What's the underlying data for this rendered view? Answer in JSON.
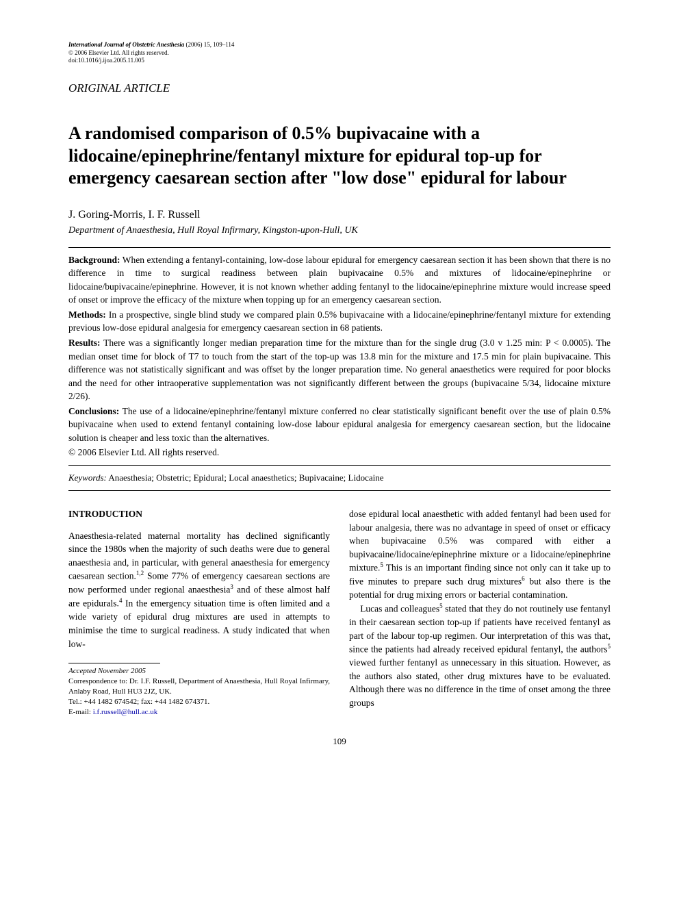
{
  "journal_header": {
    "journal_name": "International Journal of Obstetric Anesthesia",
    "citation_rest": " (2006) 15, 109–114",
    "copyright_line": "© 2006 Elsevier Ltd. All rights reserved.",
    "doi_line": "doi:10.1016/j.ijoa.2005.11.005"
  },
  "article_type": "ORIGINAL ARTICLE",
  "title": "A randomised comparison of 0.5% bupivacaine with a lidocaine/epinephrine/fentanyl mixture for epidural top-up for emergency caesarean section after \"low dose\" epidural for labour",
  "authors": "J. Goring-Morris, I. F. Russell",
  "affiliation": "Department of Anaesthesia, Hull Royal Infirmary, Kingston-upon-Hull, UK",
  "abstract": {
    "background_label": "Background:",
    "background": "When extending a fentanyl-containing, low-dose labour epidural for emergency caesarean section it has been shown that there is no difference in time to surgical readiness between plain bupivacaine 0.5% and mixtures of lidocaine/epinephrine or lidocaine/bupivacaine/epinephrine. However, it is not known whether adding fentanyl to the lidocaine/epinephrine mixture would increase speed of onset or improve the efficacy of the mixture when topping up for an emergency caesarean section.",
    "methods_label": "Methods:",
    "methods": "In a prospective, single blind study we compared plain 0.5% bupivacaine with a lidocaine/epinephrine/fentanyl mixture for extending previous low-dose epidural analgesia for emergency caesarean section in 68 patients.",
    "results_label": "Results:",
    "results": "There was a significantly longer median preparation time for the mixture than for the single drug (3.0 v 1.25 min: P < 0.0005). The median onset time for block of T7 to touch from the start of the top-up was 13.8 min for the mixture and 17.5 min for plain bupivacaine. This difference was not statistically significant and was offset by the longer preparation time. No general anaesthetics were required for poor blocks and the need for other intraoperative supplementation was not significantly different between the groups (bupivacaine 5/34, lidocaine mixture 2/26).",
    "conclusions_label": "Conclusions:",
    "conclusions": "The use of a lidocaine/epinephrine/fentanyl mixture conferred no clear statistically significant benefit over the use of plain 0.5% bupivacaine when used to extend fentanyl containing low-dose labour epidural analgesia for emergency caesarean section, but the lidocaine solution is cheaper and less toxic than the alternatives.",
    "copyright": "© 2006 Elsevier Ltd. All rights reserved."
  },
  "keywords": {
    "label": "Keywords:",
    "text": " Anaesthesia; Obstetric; Epidural; Local anaesthetics; Bupivacaine; Lidocaine"
  },
  "body": {
    "intro_heading": "INTRODUCTION",
    "left_p1_a": "Anaesthesia-related maternal mortality has declined significantly since the 1980s when the majority of such deaths were due to general anaesthesia and, in particular, with general anaesthesia for emergency caesarean section.",
    "left_p1_sup1": "1,2",
    "left_p1_b": " Some 77% of emergency caesarean sections are now performed under regional anaesthesia",
    "left_p1_sup2": "3",
    "left_p1_c": " and of these almost half are epidurals.",
    "left_p1_sup3": "4",
    "left_p1_d": " In the emergency situation time is often limited and a wide variety of epidural drug mixtures are used in attempts to minimise the time to surgical readiness. A study indicated that when low-",
    "right_p1_a": "dose epidural local anaesthetic with added fentanyl had been used for labour analgesia, there was no advantage in speed of onset or efficacy when bupivacaine 0.5% was compared with either a bupivacaine/lidocaine/epinephrine mixture or a lidocaine/epinephrine mixture.",
    "right_p1_sup1": "5",
    "right_p1_b": " This is an important finding since not only can it take up to five minutes to prepare such drug mixtures",
    "right_p1_sup2": "6",
    "right_p1_c": " but also there is the potential for drug mixing errors or bacterial contamination.",
    "right_p2_a": "Lucas and colleagues",
    "right_p2_sup1": "5",
    "right_p2_b": " stated that they do not routinely use fentanyl in their caesarean section top-up if patients have received fentanyl as part of the labour top-up regimen. Our interpretation of this was that, since the patients had already received epidural fentanyl, the authors",
    "right_p2_sup2": "5",
    "right_p2_c": " viewed further fentanyl as unnecessary in this situation. However, as the authors also stated, other drug mixtures have to be evaluated. Although there was no difference in the time of onset among the three groups"
  },
  "footnote": {
    "accepted": "Accepted November 2005",
    "correspondence": "Correspondence to: Dr. I.F. Russell, Department of Anaesthesia, Hull Royal Infirmary, Anlaby Road, Hull HU3 2JZ, UK.",
    "tel": "Tel.: +44 1482 674542; fax: +44 1482 674371.",
    "email_label": "E-mail: ",
    "email": "i.f.russell@hull.ac.uk"
  },
  "page_number": "109",
  "colors": {
    "text": "#000000",
    "background": "#ffffff",
    "link": "#0000aa"
  }
}
